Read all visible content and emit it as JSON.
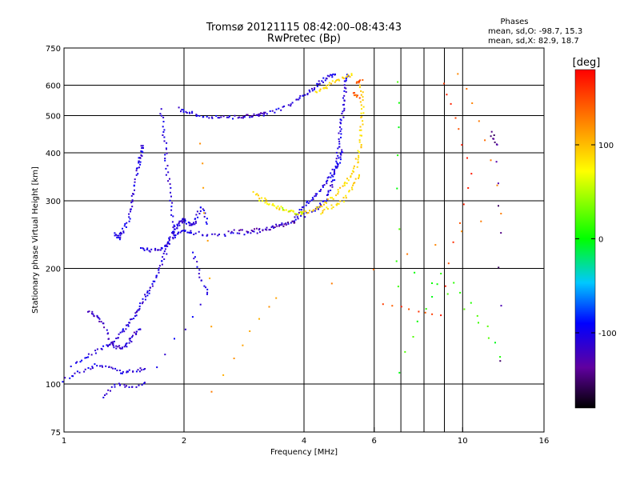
{
  "chart_data": {
    "type": "scatter",
    "title": "Tromsø 20121115 08:42:00–08:43:43",
    "subtitle": "RwPretec (Bp)",
    "xlabel": "Frequency [MHz]",
    "ylabel": "Stationary phase Virtual Height [km]",
    "x_scale": "log",
    "y_scale": "log",
    "xlim": [
      1,
      16
    ],
    "ylim": [
      75,
      750
    ],
    "x_ticks": [
      1,
      2,
      4,
      6,
      10,
      16
    ],
    "x_tick_labels": [
      "1",
      "2",
      "4",
      "6",
      "10",
      "16"
    ],
    "x_grid_lines": [
      2,
      4,
      6,
      7,
      8,
      9,
      10
    ],
    "y_ticks": [
      75,
      100,
      200,
      300,
      400,
      500,
      600,
      750
    ],
    "y_tick_labels": [
      "75",
      "100",
      "200",
      "300",
      "400",
      "500",
      "600",
      "750"
    ],
    "grid": true,
    "stats": {
      "heading": "Phases",
      "line_o": "mean, sd,O: -98.7, 15.3",
      "line_x": "mean, sd,X:  82.9, 18.7"
    },
    "colorbar": {
      "label": "[deg]",
      "min": -180,
      "max": 180,
      "ticks": [
        100,
        0,
        -100
      ],
      "tick_labels": [
        "100",
        "0",
        "-100"
      ],
      "colormap": "rainbow",
      "colors": {
        "low": "#000000",
        "mid_low": "#0000ff",
        "zero": "#00ff00",
        "mid_high": "#ffff00",
        "high": "#ff0000"
      }
    },
    "series": [
      {
        "phase": -105,
        "traces": [
          [
            [
              1.0,
              102
            ],
            [
              1.1,
              108
            ],
            [
              1.2,
              112
            ],
            [
              1.3,
              110
            ],
            [
              1.4,
              107
            ],
            [
              1.5,
              108
            ],
            [
              1.6,
              110
            ]
          ],
          [
            [
              1.05,
              112
            ],
            [
              1.15,
              118
            ],
            [
              1.25,
              124
            ],
            [
              1.32,
              128
            ],
            [
              1.38,
              135
            ],
            [
              1.45,
              142
            ],
            [
              1.5,
              150
            ],
            [
              1.55,
              158
            ],
            [
              1.6,
              168
            ],
            [
              1.65,
              178
            ],
            [
              1.7,
              190
            ],
            [
              1.75,
              205
            ],
            [
              1.8,
              222
            ],
            [
              1.85,
              240
            ],
            [
              1.9,
              255
            ],
            [
              1.95,
              262
            ],
            [
              2.0,
              268
            ],
            [
              2.05,
              262
            ],
            [
              2.1,
              258
            ],
            [
              2.15,
              270
            ],
            [
              2.2,
              290
            ],
            [
              2.3,
              260
            ]
          ],
          [
            [
              1.33,
              245
            ],
            [
              1.37,
              240
            ],
            [
              1.4,
              250
            ],
            [
              1.45,
              265
            ],
            [
              1.48,
              290
            ],
            [
              1.5,
              320
            ],
            [
              1.53,
              360
            ],
            [
              1.55,
              380
            ],
            [
              1.56,
              400
            ],
            [
              1.58,
              420
            ]
          ],
          [
            [
              1.55,
              225
            ],
            [
              1.65,
              223
            ],
            [
              1.75,
              225
            ],
            [
              1.82,
              230
            ],
            [
              1.9,
              245
            ],
            [
              2.0,
              250
            ],
            [
              2.1,
              248
            ],
            [
              2.3,
              245
            ],
            [
              2.6,
              245
            ],
            [
              3.0,
              248
            ],
            [
              3.3,
              255
            ],
            [
              3.6,
              262
            ],
            [
              3.9,
              272
            ],
            [
              4.2,
              282
            ],
            [
              4.4,
              292
            ],
            [
              4.6,
              310
            ],
            [
              4.7,
              330
            ],
            [
              4.8,
              360
            ],
            [
              4.85,
              390
            ],
            [
              4.9,
              430
            ],
            [
              4.95,
              470
            ],
            [
              5.0,
              510
            ],
            [
              5.05,
              560
            ],
            [
              5.1,
              610
            ],
            [
              5.15,
              640
            ]
          ],
          [
            [
              1.75,
              520
            ],
            [
              1.78,
              450
            ],
            [
              1.8,
              400
            ],
            [
              1.82,
              350
            ],
            [
              1.85,
              300
            ],
            [
              1.88,
              260
            ],
            [
              1.9,
              240
            ]
          ],
          [
            [
              1.95,
              520
            ],
            [
              2.05,
              510
            ],
            [
              2.2,
              500
            ],
            [
              2.4,
              495
            ],
            [
              2.6,
              495
            ],
            [
              2.9,
              498
            ],
            [
              3.2,
              505
            ],
            [
              3.5,
              520
            ],
            [
              3.8,
              545
            ],
            [
              4.0,
              565
            ],
            [
              4.2,
              585
            ],
            [
              4.4,
              610
            ],
            [
              4.6,
              630
            ],
            [
              4.8,
              640
            ]
          ],
          [
            [
              3.8,
              272
            ],
            [
              4.0,
              290
            ],
            [
              4.2,
              305
            ],
            [
              4.4,
              320
            ],
            [
              4.6,
              340
            ],
            [
              4.75,
              360
            ],
            [
              4.9,
              380
            ],
            [
              5.0,
              410
            ]
          ],
          [
            [
              1.25,
              92
            ],
            [
              1.35,
              100
            ],
            [
              1.45,
              98
            ],
            [
              1.6,
              100
            ],
            [
              2.3,
              170
            ],
            [
              2.2,
              190
            ],
            [
              2.1,
              220
            ]
          ]
        ]
      },
      {
        "phase": -130,
        "traces": [
          [
            [
              2.6,
              250
            ],
            [
              2.9,
              250
            ],
            [
              3.2,
              253
            ],
            [
              3.5,
              258
            ],
            [
              3.8,
              265
            ]
          ],
          [
            [
              2.8,
              497
            ],
            [
              3.0,
              500
            ],
            [
              3.2,
              508
            ]
          ]
        ]
      },
      {
        "phase": 90,
        "traces": [
          [
            [
              3.0,
              315
            ],
            [
              3.2,
              300
            ],
            [
              3.5,
              285
            ],
            [
              3.8,
              278
            ],
            [
              4.1,
              280
            ],
            [
              4.4,
              290
            ],
            [
              4.7,
              305
            ],
            [
              5.0,
              325
            ],
            [
              5.2,
              345
            ],
            [
              5.4,
              370
            ],
            [
              5.5,
              400
            ],
            [
              5.55,
              440
            ],
            [
              5.6,
              490
            ],
            [
              5.6,
              540
            ],
            [
              5.55,
              600
            ]
          ],
          [
            [
              4.3,
              575
            ],
            [
              4.5,
              590
            ],
            [
              4.7,
              610
            ],
            [
              5.0,
              625
            ],
            [
              5.3,
              640
            ]
          ],
          [
            [
              4.4,
              280
            ],
            [
              4.7,
              290
            ],
            [
              5.0,
              300
            ],
            [
              5.3,
              325
            ],
            [
              5.5,
              350
            ]
          ]
        ]
      },
      {
        "phase": 60,
        "traces": [
          [
            [
              3.1,
              300
            ],
            [
              3.4,
              290
            ],
            [
              3.7,
              282
            ],
            [
              4.0,
              277
            ]
          ]
        ]
      },
      {
        "phase": 145,
        "traces": [
          [
            [
              5.4,
              610
            ],
            [
              5.6,
              620
            ]
          ],
          [
            [
              5.3,
              570
            ],
            [
              5.5,
              560
            ]
          ]
        ]
      },
      {
        "phase": 10,
        "traces": [
          [
            [
              6.9,
              610
            ],
            [
              6.9,
              108
            ],
            [
              8.9,
              195
            ],
            [
              12.5,
              118
            ],
            [
              6.8,
              210
            ]
          ]
        ]
      },
      {
        "phase": 155,
        "traces": [
          [
            [
              6.3,
              162
            ],
            [
              8.8,
              150
            ],
            [
              10.5,
              350
            ],
            [
              8.9,
              605
            ]
          ]
        ]
      },
      {
        "phase": 120,
        "traces": [
          [
            [
              9.8,
              640
            ],
            [
              12.5,
              280
            ],
            [
              3.4,
              168
            ],
            [
              2.35,
              95
            ],
            [
              2.2,
              420
            ]
          ]
        ]
      },
      {
        "phase": -140,
        "traces": [
          [
            [
              11.8,
              450
            ],
            [
              12.2,
              420
            ],
            [
              12.5,
              115
            ]
          ]
        ]
      },
      {
        "phase": -115,
        "traces": [
          [
            [
              1.15,
              155
            ],
            [
              1.2,
              150
            ],
            [
              1.25,
              145
            ],
            [
              1.3,
              130
            ],
            [
              1.35,
              125
            ],
            [
              1.4,
              124
            ],
            [
              1.45,
              128
            ],
            [
              1.5,
              135
            ],
            [
              1.55,
              140
            ]
          ]
        ]
      }
    ]
  }
}
